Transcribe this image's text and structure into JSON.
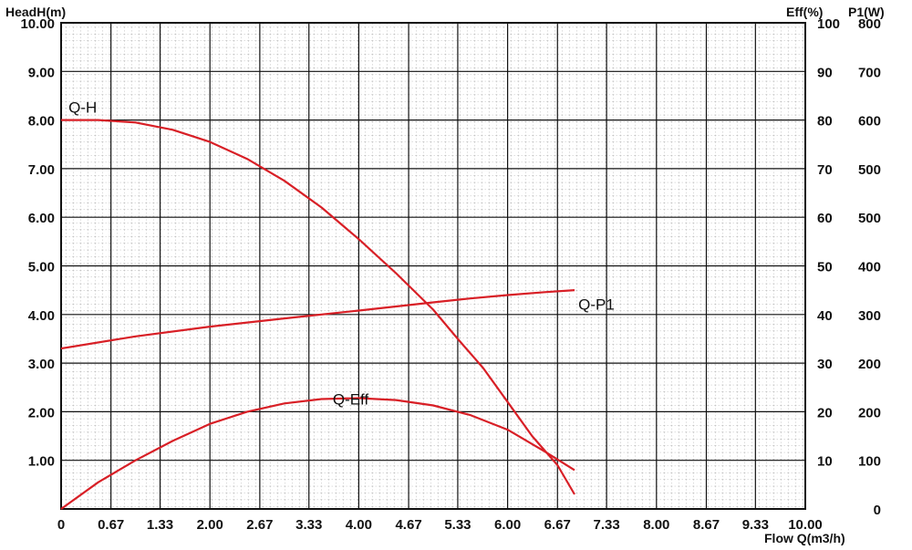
{
  "chart_data": {
    "type": "line",
    "axes": {
      "x": {
        "label": "Flow Q(m3/h)",
        "range": [
          0,
          10
        ],
        "ticks": [
          0,
          0.67,
          1.33,
          2.0,
          2.67,
          3.33,
          4.0,
          4.67,
          5.33,
          6.0,
          6.67,
          7.33,
          8.0,
          8.67,
          9.33,
          10.0
        ],
        "tick_labels": [
          "0",
          "0.67",
          "1.33",
          "2.00",
          "2.67",
          "3.33",
          "4.00",
          "4.67",
          "5.33",
          "6.00",
          "6.67",
          "7.33",
          "8.00",
          "8.67",
          "9.33",
          "10.00"
        ]
      },
      "y_left": {
        "label": "HeadH(m)",
        "range": [
          0,
          10
        ],
        "ticks": [
          1,
          2,
          3,
          4,
          5,
          6,
          7,
          8,
          9,
          10
        ],
        "tick_labels": [
          "1.00",
          "2.00",
          "3.00",
          "4.00",
          "5.00",
          "6.00",
          "7.00",
          "8.00",
          "9.00",
          "10.00"
        ]
      },
      "y_right_eff": {
        "label": "Eff(%)",
        "range": [
          0,
          100
        ],
        "ticks": [
          10,
          20,
          30,
          40,
          50,
          60,
          70,
          80,
          90,
          100
        ],
        "tick_labels": [
          "10",
          "20",
          "30",
          "40",
          "50",
          "60",
          "70",
          "80",
          "90",
          "100"
        ]
      },
      "y_right_p1": {
        "label": "P1(W)",
        "ticks": [
          0,
          1,
          2,
          3,
          4,
          5,
          6,
          7,
          8,
          9,
          10
        ],
        "tick_labels": [
          "0",
          "100",
          "200",
          "200",
          "300",
          "400",
          "500",
          "500",
          "600",
          "700",
          "800"
        ]
      }
    },
    "grid": true,
    "series": [
      {
        "name": "Q-H",
        "color": "#d81f26",
        "axis": "y_left",
        "label_anchor": [
          0.1,
          8.15
        ],
        "points": [
          [
            0,
            8.0
          ],
          [
            0.5,
            8.0
          ],
          [
            1.0,
            7.95
          ],
          [
            1.5,
            7.8
          ],
          [
            2.0,
            7.55
          ],
          [
            2.5,
            7.2
          ],
          [
            3.0,
            6.75
          ],
          [
            3.5,
            6.2
          ],
          [
            4.0,
            5.55
          ],
          [
            4.5,
            4.85
          ],
          [
            5.0,
            4.1
          ],
          [
            5.33,
            3.5
          ],
          [
            5.67,
            2.9
          ],
          [
            6.0,
            2.2
          ],
          [
            6.33,
            1.5
          ],
          [
            6.67,
            0.9
          ],
          [
            6.9,
            0.3
          ]
        ]
      },
      {
        "name": "Q-P1",
        "color": "#d81f26",
        "axis": "y_right_p1",
        "label_anchor": [
          6.95,
          4.1
        ],
        "points": [
          [
            0,
            3.3
          ],
          [
            1.0,
            3.55
          ],
          [
            2.0,
            3.75
          ],
          [
            3.0,
            3.92
          ],
          [
            4.0,
            4.08
          ],
          [
            5.0,
            4.25
          ],
          [
            5.5,
            4.33
          ],
          [
            6.0,
            4.4
          ],
          [
            6.5,
            4.46
          ],
          [
            6.9,
            4.5
          ]
        ]
      },
      {
        "name": "Q-Eff",
        "color": "#d81f26",
        "axis": "y_right_eff",
        "label_anchor": [
          3.65,
          2.15
        ],
        "points": [
          [
            0,
            0
          ],
          [
            0.5,
            5.5
          ],
          [
            1.0,
            10.0
          ],
          [
            1.5,
            14.0
          ],
          [
            2.0,
            17.5
          ],
          [
            2.5,
            20.0
          ],
          [
            3.0,
            21.7
          ],
          [
            3.5,
            22.6
          ],
          [
            4.0,
            22.8
          ],
          [
            4.5,
            22.4
          ],
          [
            5.0,
            21.3
          ],
          [
            5.5,
            19.3
          ],
          [
            6.0,
            16.3
          ],
          [
            6.5,
            11.8
          ],
          [
            6.9,
            8.0
          ]
        ]
      }
    ]
  }
}
